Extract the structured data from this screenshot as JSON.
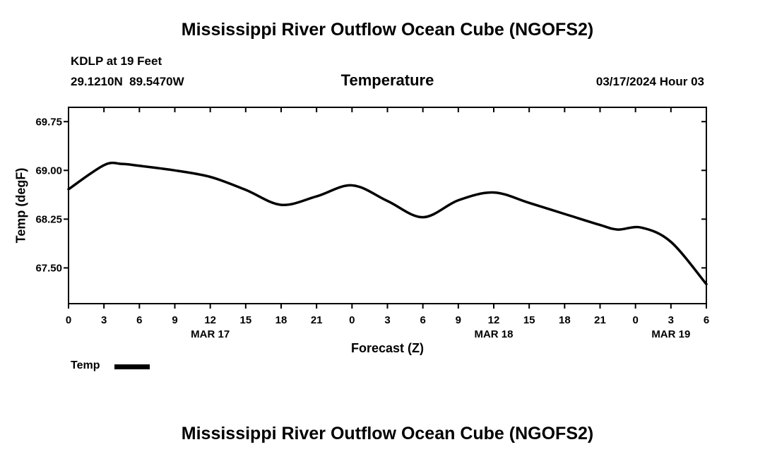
{
  "page": {
    "title_top": "Mississippi River Outflow Ocean Cube (NGOFS2)",
    "title_bottom": "Mississippi River Outflow Ocean Cube (NGOFS2)"
  },
  "header": {
    "station": "KDLP at 19 Feet",
    "coordinates": "29.1210N  89.5470W",
    "plot_title": "Temperature",
    "datetime": "03/17/2024 Hour 03"
  },
  "legend": {
    "label": "Temp",
    "color": "#000000"
  },
  "chart_data": {
    "type": "line",
    "title": "Temperature",
    "xlabel": "Forecast (Z)",
    "ylabel": "Temp (degF)",
    "xlim": [
      0,
      54
    ],
    "ylim": [
      66.95,
      69.97
    ],
    "grid": false,
    "legend_position": "bottom-left",
    "x_tick_hours": [
      0,
      3,
      6,
      9,
      12,
      15,
      18,
      21,
      24,
      27,
      30,
      33,
      36,
      39,
      42,
      45,
      48,
      51,
      54
    ],
    "x_tick_labels": [
      "0",
      "3",
      "6",
      "9",
      "12",
      "15",
      "18",
      "21",
      "0",
      "3",
      "6",
      "9",
      "12",
      "15",
      "18",
      "21",
      "0",
      "3",
      "6"
    ],
    "y_ticks": [
      69.75,
      69.0,
      68.25,
      67.5
    ],
    "y_tick_labels": [
      "69.75",
      "69.00",
      "68.25",
      "67.50"
    ],
    "date_labels": [
      {
        "label": "MAR 17",
        "hour": 12
      },
      {
        "label": "MAR 18",
        "hour": 36
      },
      {
        "label": "MAR 19",
        "hour": 51
      }
    ],
    "series": [
      {
        "name": "Temp",
        "color": "#000000",
        "x": [
          0,
          3,
          4.5,
          6,
          9,
          12,
          15,
          18,
          21,
          24,
          27,
          30,
          33,
          36,
          39,
          42,
          45,
          46.5,
          48.5,
          51,
          54
        ],
        "values": [
          68.71,
          69.08,
          69.1,
          69.07,
          69.0,
          68.9,
          68.7,
          68.47,
          68.6,
          68.77,
          68.53,
          68.28,
          68.54,
          68.66,
          68.5,
          68.33,
          68.16,
          68.09,
          68.12,
          67.9,
          67.25
        ]
      }
    ]
  }
}
